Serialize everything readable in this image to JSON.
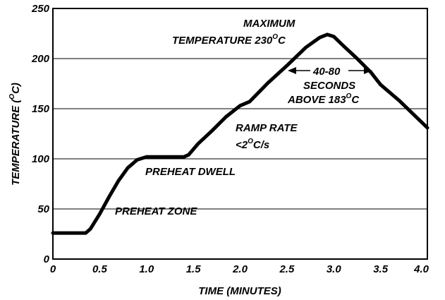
{
  "chart_data": {
    "type": "line",
    "xlabel": "TIME (MINUTES)",
    "ylabel_main": "TEMPERATURE (",
    "ylabel_sup": "O",
    "ylabel_end": "C)",
    "xlim": [
      0,
      4.0
    ],
    "ylim": [
      0,
      250
    ],
    "x_ticks": [
      "0",
      "0.5",
      "1.0",
      "1.5",
      "2.0",
      "2.5",
      "3.0",
      "3.5",
      "4.0"
    ],
    "x_tick_values": [
      0,
      0.5,
      1.0,
      1.5,
      2.0,
      2.5,
      3.0,
      3.5,
      4.0
    ],
    "y_ticks": [
      "0",
      "50",
      "100",
      "150",
      "200",
      "250"
    ],
    "y_tick_values": [
      0,
      50,
      100,
      150,
      200,
      250
    ],
    "grid": "horizontal",
    "series": [
      {
        "x": [
          0,
          0.35,
          0.4,
          0.5,
          0.6,
          0.7,
          0.8,
          0.9,
          1.0,
          1.2,
          1.4,
          1.45,
          1.55,
          1.7,
          1.85,
          2.0,
          2.1,
          2.3,
          2.5,
          2.7,
          2.85,
          2.93,
          3.0,
          3.1,
          3.25,
          3.4,
          3.5,
          3.7,
          3.9,
          4.0
        ],
        "y": [
          26,
          26,
          30,
          45,
          62,
          78,
          91,
          99,
          102,
          102,
          102,
          104,
          115,
          128,
          142,
          153,
          157,
          176,
          193,
          211,
          221,
          224,
          222,
          213,
          200,
          186,
          174,
          158,
          140,
          131
        ]
      }
    ],
    "annotations": {
      "max_line1": "MAXIMUM",
      "max_line2_main": "TEMPERATURE 230",
      "max_line2_sup": "O",
      "max_line2_end": "C",
      "window_line1": "40-80",
      "window_line2": "SECONDS",
      "window_line3_main": "ABOVE 183",
      "window_line3_sup": "O",
      "window_line3_end": "C",
      "ramp_line1": "RAMP RATE",
      "ramp_line2_main": "<2",
      "ramp_line2_sup": "O",
      "ramp_line2_end": "C/s",
      "preheat_dwell": "PREHEAT DWELL",
      "preheat_zone": "PREHEAT ZONE"
    }
  }
}
